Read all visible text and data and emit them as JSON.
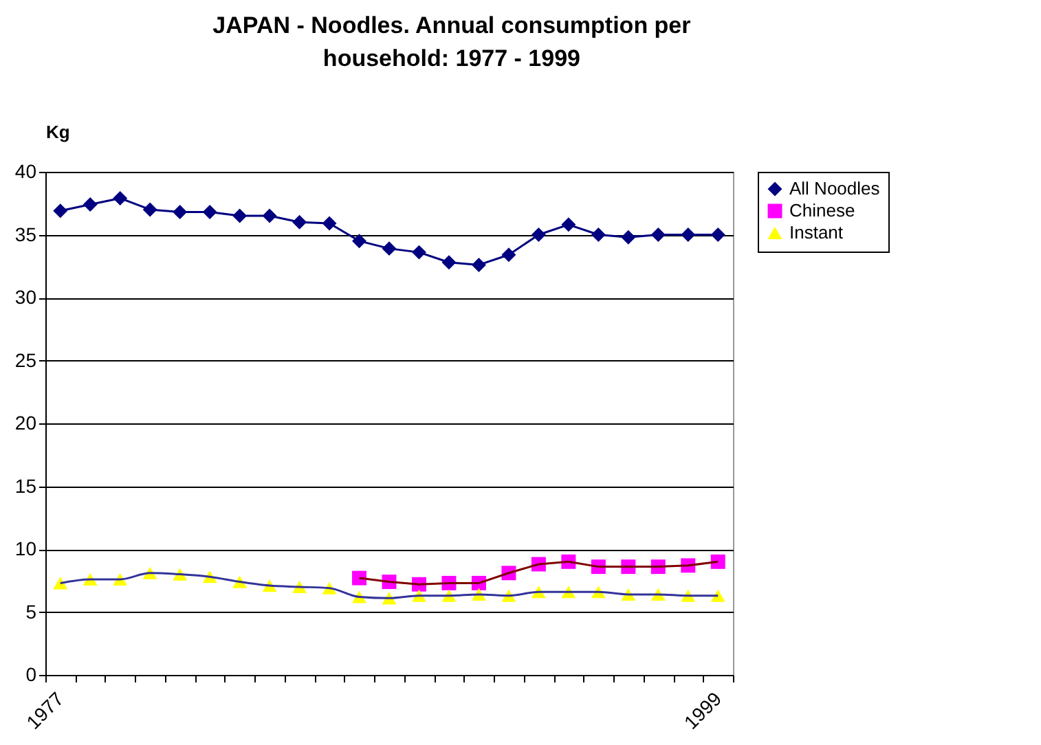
{
  "chart_data": {
    "type": "line",
    "title": "JAPAN - Noodles.  Annual consumption per household: 1977 - 1999",
    "ylabel": "Kg",
    "categories": [
      "1977",
      null,
      null,
      null,
      null,
      null,
      null,
      null,
      null,
      null,
      null,
      null,
      null,
      null,
      null,
      null,
      null,
      null,
      null,
      null,
      null,
      null,
      "1999"
    ],
    "series": [
      {
        "name": "All Noodles",
        "color": "#000080",
        "marker": "diamond",
        "values": [
          36.9,
          37.4,
          37.9,
          37.0,
          36.8,
          36.8,
          36.5,
          36.5,
          36.0,
          35.9,
          34.5,
          33.9,
          33.6,
          32.8,
          32.6,
          33.4,
          35.0,
          35.8,
          35.0,
          34.8,
          35.0,
          35.0,
          35.0
        ]
      },
      {
        "name": "Chinese",
        "color": "#ff00ff",
        "marker": "square",
        "values": [
          null,
          null,
          null,
          null,
          null,
          null,
          null,
          null,
          null,
          null,
          7.7,
          7.4,
          7.2,
          7.3,
          7.3,
          8.1,
          8.8,
          9.0,
          8.6,
          8.6,
          8.6,
          8.7,
          9.0
        ]
      },
      {
        "name": "Instant",
        "color": "#ffff00",
        "marker": "triangle",
        "values": [
          7.3,
          7.6,
          7.6,
          8.1,
          8.0,
          7.8,
          7.4,
          7.1,
          7.0,
          6.9,
          6.2,
          6.1,
          6.3,
          6.3,
          6.4,
          6.3,
          6.6,
          6.6,
          6.6,
          6.4,
          6.4,
          6.3,
          6.3
        ]
      }
    ],
    "ylim": [
      0,
      40
    ],
    "yticks": [
      0,
      5,
      10,
      15,
      20,
      25,
      30,
      35,
      40
    ],
    "grid": "y",
    "legend": "right"
  }
}
